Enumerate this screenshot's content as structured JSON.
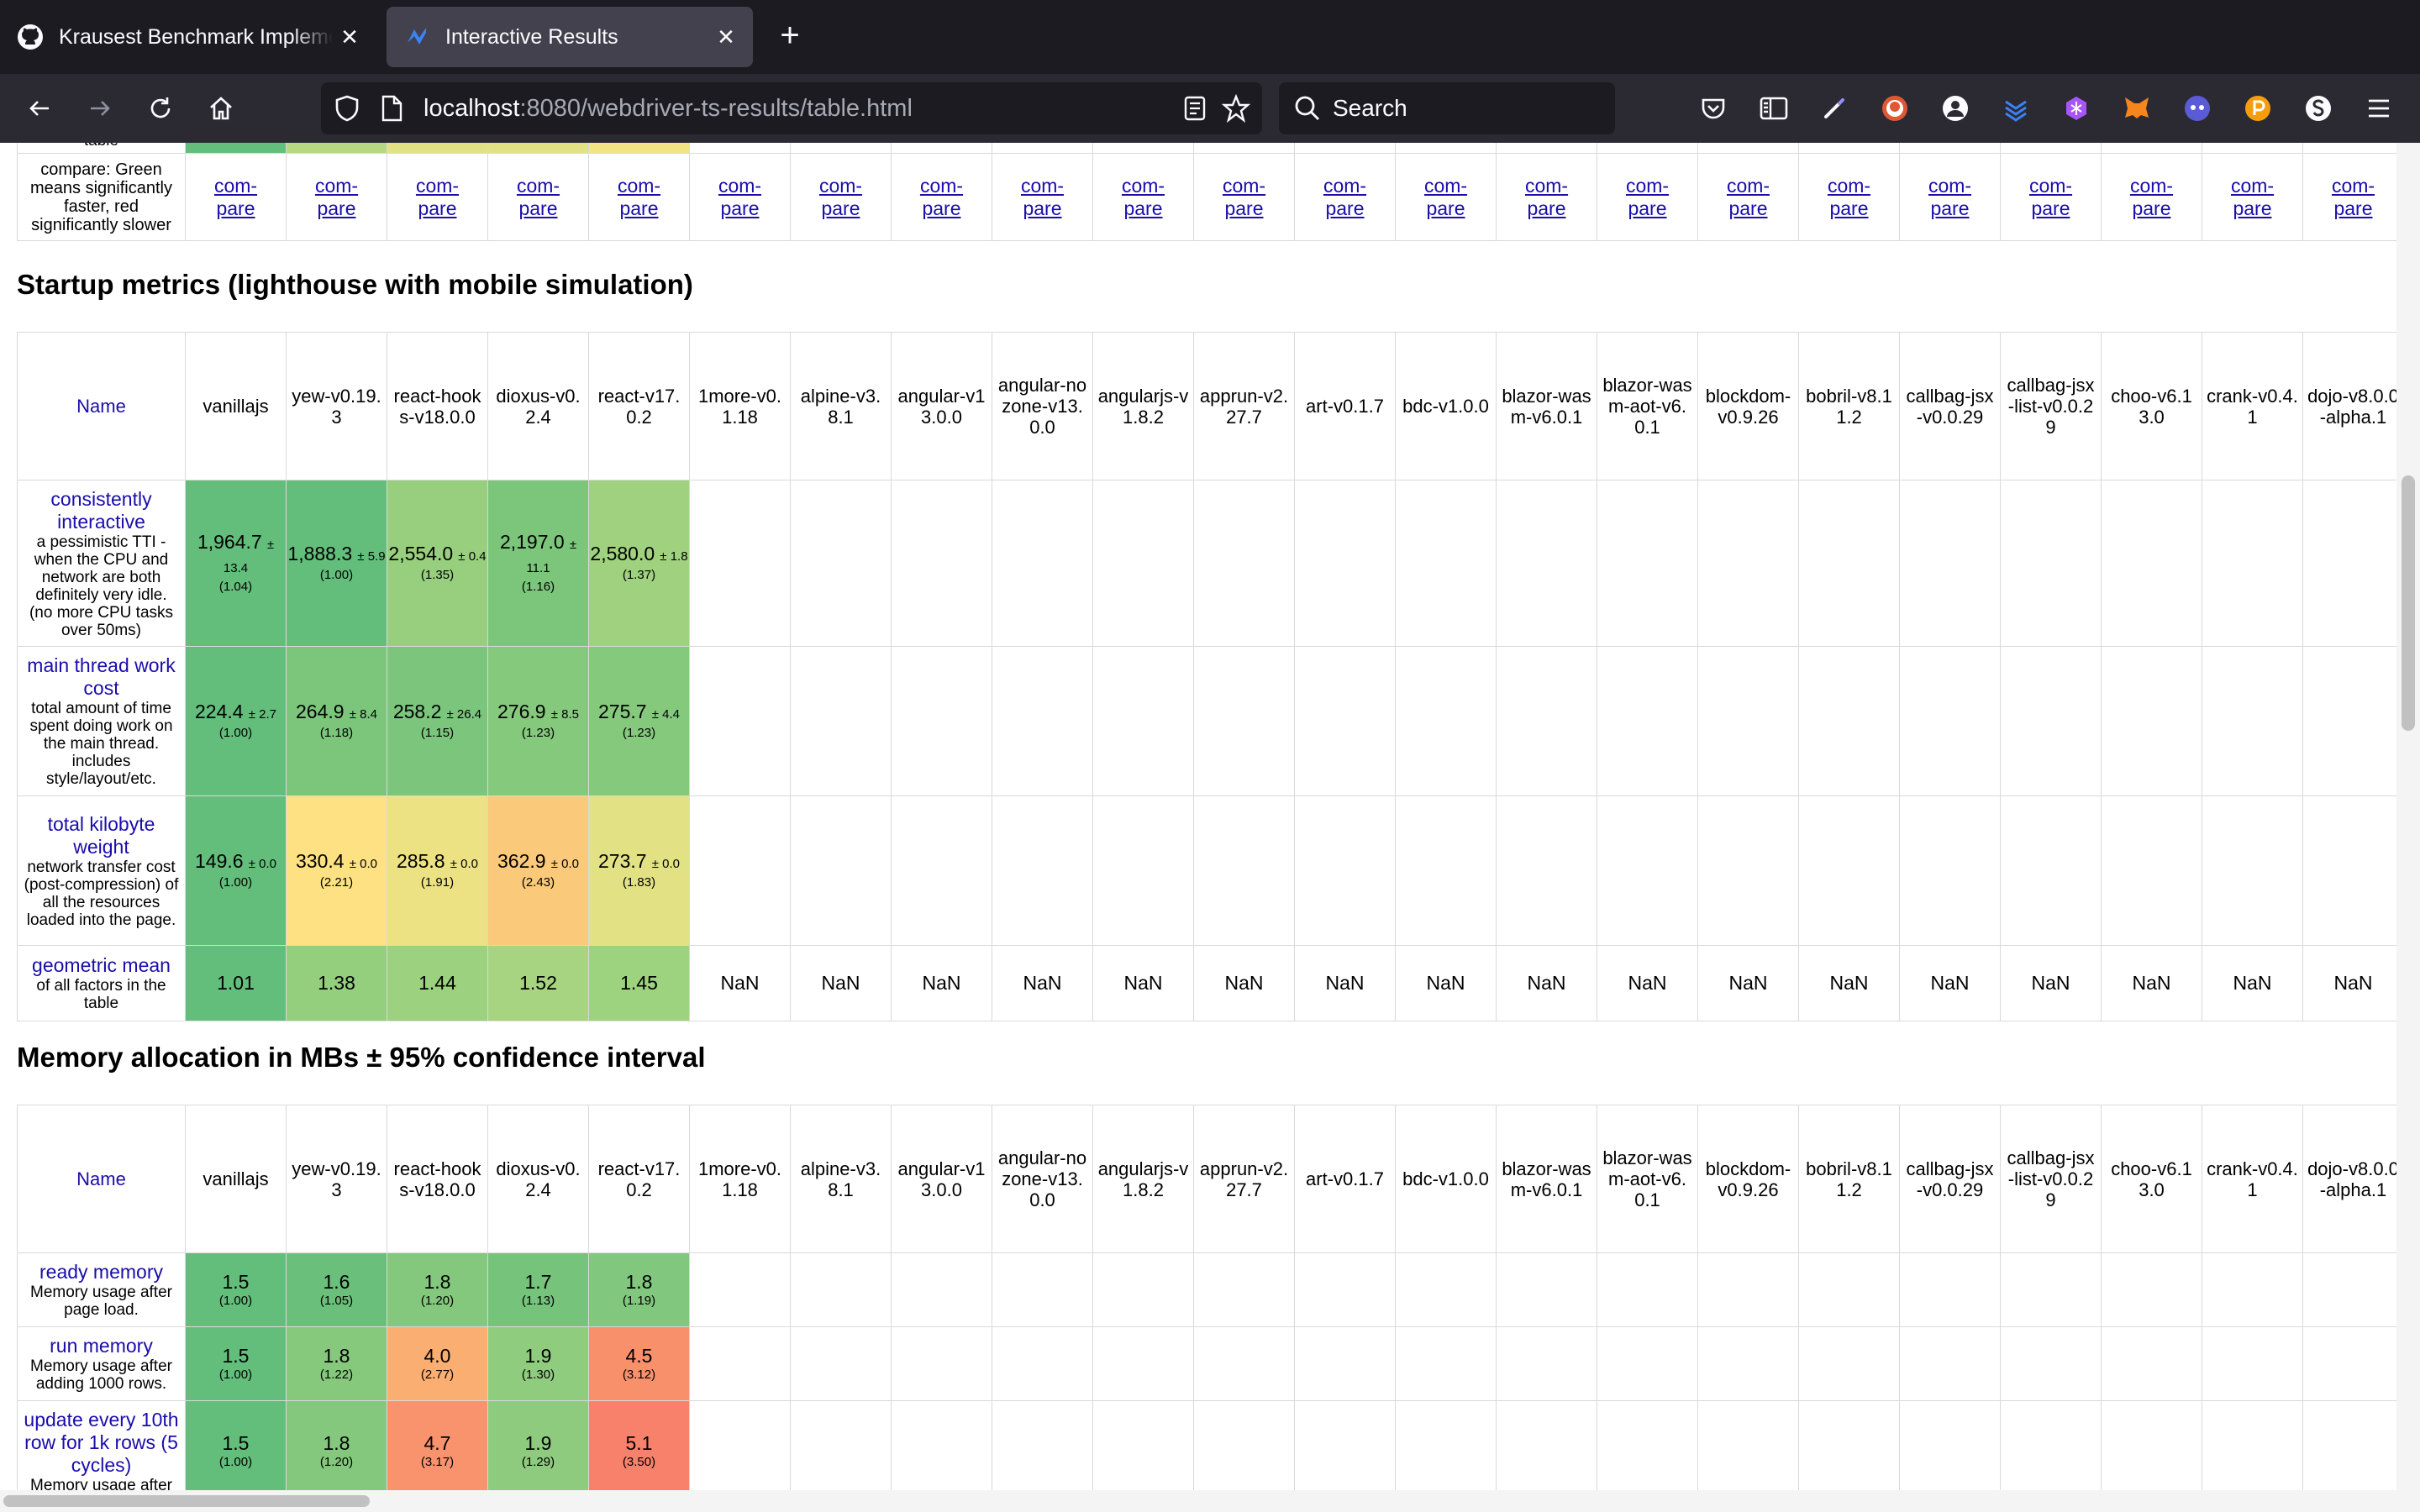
{
  "browser": {
    "tabs": [
      {
        "title": "Krausest Benchmark Implementat",
        "favicon": "github-icon",
        "active": false
      },
      {
        "title": "Interactive Results",
        "favicon": "chart-favicon-icon",
        "active": true
      }
    ],
    "url_host": "localhost",
    "url_rest": ":8080/webdriver-ts-results/table.html",
    "search_placeholder": "Search"
  },
  "frameworks": [
    "vanillajs",
    "yew-v0.19.3",
    "react-hooks-v18.0.0",
    "dioxus-v0.2.4",
    "react-v17.0.2",
    "1more-v0.1.18",
    "alpine-v3.8.1",
    "angular-v13.0.0",
    "angular-nozone-v13.0.0",
    "angularjs-v1.8.2",
    "apprun-v2.27.7",
    "art-v0.1.7",
    "bdc-v1.0.0",
    "blazor-wasm-v6.0.1",
    "blazor-wasm-aot-v6.0.1",
    "blockdom-v0.9.26",
    "bobril-v8.11.2",
    "callbag-jsx-v0.0.29",
    "callbag-jsx-list-v0.0.29",
    "choo-v6.13.0",
    "crank-v0.4.1",
    "dojo-v8.0.0-alpha.1"
  ],
  "colors": {
    "green": "#63be7b",
    "lightgreen": "#9cd17f",
    "yellow": "#f8e17a",
    "orange": "#fbbd76",
    "red": "#f8836d"
  },
  "top_partial": {
    "cut_label": "table",
    "compare_desc": "compare: Green means significantly faster, red significantly slower",
    "compare_link": "compare"
  },
  "startup": {
    "title": "Startup metrics (lighthouse with mobile simulation)",
    "name_header": "Name",
    "rows": [
      {
        "name": "consistently interactive",
        "desc": "a pessimistic TTI - when the CPU and network are both definitely very idle. (no more CPU tasks over 50ms)",
        "cells": [
          {
            "v": "1,964.7",
            "pm": "± 13.4",
            "f": "(1.04)",
            "c": "#63be7b"
          },
          {
            "v": "1,888.3",
            "pm": "± 5.9",
            "f": "(1.00)",
            "c": "#63be7b"
          },
          {
            "v": "2,554.0",
            "pm": "± 0.4",
            "f": "(1.35)",
            "c": "#98cf7e"
          },
          {
            "v": "2,197.0",
            "pm": "± 11.1",
            "f": "(1.16)",
            "c": "#7cc67c"
          },
          {
            "v": "2,580.0",
            "pm": "± 1.8",
            "f": "(1.37)",
            "c": "#9fd17f"
          }
        ]
      },
      {
        "name": "main thread work cost",
        "desc": "total amount of time spent doing work on the main thread. includes style/layout/etc.",
        "cells": [
          {
            "v": "224.4",
            "pm": "± 2.7",
            "f": "(1.00)",
            "c": "#63be7b"
          },
          {
            "v": "264.9",
            "pm": "± 8.4",
            "f": "(1.18)",
            "c": "#7cc67c"
          },
          {
            "v": "258.2",
            "pm": "± 26.4",
            "f": "(1.15)",
            "c": "#7bc57c"
          },
          {
            "v": "276.9",
            "pm": "± 8.5",
            "f": "(1.23)",
            "c": "#85c97d"
          },
          {
            "v": "275.7",
            "pm": "± 4.4",
            "f": "(1.23)",
            "c": "#85c97d"
          }
        ]
      },
      {
        "name": "total kilobyte weight",
        "desc": "network transfer cost (post-compression) of all the resources loaded into the page.",
        "cells": [
          {
            "v": "149.6",
            "pm": "± 0.0",
            "f": "(1.00)",
            "c": "#63be7b"
          },
          {
            "v": "330.4",
            "pm": "± 0.0",
            "f": "(2.21)",
            "c": "#fde183"
          },
          {
            "v": "285.8",
            "pm": "± 0.0",
            "f": "(1.91)",
            "c": "#ece283"
          },
          {
            "v": "362.9",
            "pm": "± 0.0",
            "f": "(2.43)",
            "c": "#fbc97a"
          },
          {
            "v": "273.7",
            "pm": "± 0.0",
            "f": "(1.83)",
            "c": "#e2e285"
          }
        ]
      },
      {
        "name": "geometric mean",
        "desc": "of all factors in the table",
        "geo": true,
        "cells": [
          {
            "v": "1.01",
            "c": "#63be7b"
          },
          {
            "v": "1.38",
            "c": "#94cf7e"
          },
          {
            "v": "1.44",
            "c": "#9cd17f"
          },
          {
            "v": "1.52",
            "c": "#a7d480"
          },
          {
            "v": "1.45",
            "c": "#9dd27f"
          }
        ],
        "nan": "NaN"
      }
    ]
  },
  "memory": {
    "title": "Memory allocation in MBs ± 95% confidence interval",
    "name_header": "Name",
    "rows": [
      {
        "name": "ready memory",
        "desc": "Memory usage after page load.",
        "cells": [
          {
            "v": "1.5",
            "f": "(1.00)",
            "c": "#63be7b"
          },
          {
            "v": "1.6",
            "f": "(1.05)",
            "c": "#6ac07b"
          },
          {
            "v": "1.8",
            "f": "(1.20)",
            "c": "#83c87d"
          },
          {
            "v": "1.7",
            "f": "(1.13)",
            "c": "#76c47c"
          },
          {
            "v": "1.8",
            "f": "(1.19)",
            "c": "#81c77d"
          }
        ]
      },
      {
        "name": "run memory",
        "desc": "Memory usage after adding 1000 rows.",
        "cells": [
          {
            "v": "1.5",
            "f": "(1.00)",
            "c": "#63be7b"
          },
          {
            "v": "1.8",
            "f": "(1.22)",
            "c": "#86c97d"
          },
          {
            "v": "4.0",
            "f": "(2.77)",
            "c": "#fbae71"
          },
          {
            "v": "1.9",
            "f": "(1.30)",
            "c": "#8fcc7e"
          },
          {
            "v": "4.5",
            "f": "(3.12)",
            "c": "#f8906c"
          }
        ]
      },
      {
        "name": "update every 10th row for 1k rows (5 cycles)",
        "desc": "Memory usage after",
        "cells": [
          {
            "v": "1.5",
            "f": "(1.00)",
            "c": "#63be7b"
          },
          {
            "v": "1.8",
            "f": "(1.20)",
            "c": "#84c87d"
          },
          {
            "v": "4.7",
            "f": "(3.17)",
            "c": "#f8936e"
          },
          {
            "v": "1.9",
            "f": "(1.29)",
            "c": "#8ecb7e"
          },
          {
            "v": "5.1",
            "f": "(3.50)",
            "c": "#f8816b"
          }
        ]
      }
    ]
  }
}
